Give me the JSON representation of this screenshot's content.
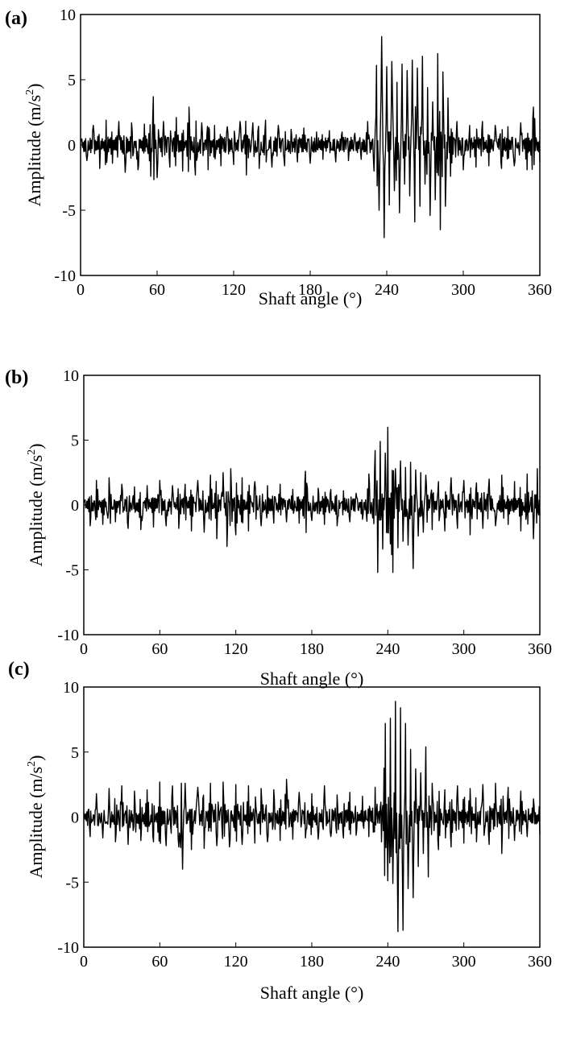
{
  "chart_data": [
    {
      "type": "line",
      "panel_label": "(a)",
      "xlabel": "Shaft angle (°)",
      "ylabel_main": "Amplitude (m/s",
      "ylabel_sup": "2",
      "ylabel_end": ")",
      "xlim": [
        0,
        360
      ],
      "ylim": [
        -10,
        10
      ],
      "xticks": [
        "0",
        "60",
        "120",
        "180",
        "240",
        "300",
        "360"
      ],
      "yticks": [
        "10",
        "5",
        "0",
        "-5",
        "-10"
      ],
      "grid": false,
      "series": [
        {
          "color": "#000000",
          "base_amplitude": 1.2,
          "seed": 11,
          "x": [
            0,
            5,
            10,
            15,
            20,
            25,
            30,
            35,
            40,
            45,
            50,
            55,
            57,
            60,
            65,
            70,
            75,
            80,
            85,
            90,
            95,
            100,
            105,
            110,
            115,
            120,
            125,
            130,
            135,
            140,
            145,
            150,
            155,
            160,
            165,
            170,
            175,
            180,
            185,
            190,
            195,
            200,
            205,
            210,
            215,
            220,
            225,
            230,
            232,
            234,
            236,
            238,
            240,
            242,
            244,
            246,
            248,
            250,
            252,
            254,
            256,
            258,
            260,
            262,
            264,
            266,
            268,
            270,
            272,
            274,
            276,
            278,
            280,
            282,
            284,
            286,
            288,
            290,
            295,
            300,
            305,
            310,
            315,
            320,
            325,
            330,
            335,
            340,
            345,
            350,
            355,
            360
          ],
          "y": [
            0.3,
            -1.2,
            1.5,
            -1.8,
            1.9,
            -1.4,
            1.8,
            -2.1,
            1.7,
            -1.9,
            1.6,
            -2.4,
            3.7,
            -2.5,
            1.8,
            -1.7,
            2.1,
            -2.0,
            2.9,
            -2.3,
            1.7,
            -1.9,
            1.5,
            -1.6,
            1.4,
            -1.5,
            1.8,
            -2.3,
            1.7,
            -1.8,
            1.9,
            -1.7,
            1.5,
            -1.6,
            1.2,
            -1.3,
            1.3,
            -1.4,
            1.0,
            -1.1,
            1.1,
            -1.3,
            1.0,
            -1.2,
            0.9,
            -1.1,
            1.8,
            -2.0,
            6.1,
            -5.0,
            8.3,
            -7.1,
            6.0,
            -4.6,
            6.4,
            -3.5,
            4.8,
            -5.2,
            6.2,
            -3.0,
            5.7,
            -3.9,
            6.5,
            -5.9,
            5.9,
            -4.7,
            6.8,
            -3.0,
            4.4,
            -5.4,
            3.3,
            -4.2,
            7.0,
            -6.5,
            5.6,
            -4.7,
            3.6,
            -2.4,
            1.8,
            -1.9,
            1.5,
            -1.7,
            1.8,
            -1.6,
            1.5,
            -1.8,
            1.4,
            -1.6,
            1.7,
            -1.9,
            2.9,
            -1.3
          ]
        }
      ]
    },
    {
      "type": "line",
      "panel_label": "(b)",
      "xlabel": "Shaft angle (°)",
      "ylabel_main": "Amplitude (m/s",
      "ylabel_sup": "2",
      "ylabel_end": ")",
      "xlim": [
        0,
        360
      ],
      "ylim": [
        -10,
        10
      ],
      "xticks": [
        "0",
        "60",
        "120",
        "180",
        "240",
        "300",
        "360"
      ],
      "yticks": [
        "10",
        "5",
        "0",
        "-5",
        "-10"
      ],
      "grid": false,
      "series": [
        {
          "color": "#000000",
          "base_amplitude": 1.0,
          "seed": 23,
          "x": [
            0,
            5,
            10,
            15,
            20,
            25,
            30,
            35,
            40,
            45,
            50,
            55,
            60,
            65,
            70,
            75,
            80,
            85,
            90,
            95,
            100,
            105,
            110,
            113,
            116,
            120,
            125,
            130,
            135,
            140,
            145,
            150,
            155,
            160,
            165,
            170,
            175,
            180,
            185,
            190,
            195,
            200,
            205,
            210,
            215,
            220,
            225,
            228,
            230,
            232,
            234,
            236,
            238,
            240,
            242,
            244,
            246,
            248,
            250,
            252,
            254,
            256,
            258,
            260,
            262,
            264,
            266,
            268,
            270,
            275,
            280,
            285,
            290,
            295,
            300,
            305,
            310,
            315,
            320,
            325,
            330,
            335,
            340,
            345,
            350,
            355,
            358,
            360
          ],
          "y": [
            0.2,
            -1.6,
            1.9,
            -1.5,
            2.1,
            -1.3,
            1.6,
            -1.8,
            1.4,
            -1.9,
            1.5,
            -1.7,
            1.9,
            -1.6,
            1.5,
            -1.8,
            1.6,
            -2.0,
            1.9,
            -2.1,
            2.3,
            -2.6,
            2.5,
            -3.2,
            2.8,
            -2.3,
            2.1,
            -2.0,
            1.8,
            -1.6,
            1.5,
            -1.4,
            1.6,
            -1.3,
            1.2,
            -1.4,
            2.6,
            -1.2,
            1.3,
            -1.5,
            1.2,
            -1.6,
            1.1,
            -1.3,
            0.9,
            -1.1,
            2.4,
            -1.0,
            4.2,
            -5.2,
            4.9,
            -3.4,
            4.0,
            6.0,
            -3.0,
            -5.2,
            2.8,
            -3.3,
            3.4,
            -2.8,
            2.9,
            -3.1,
            3.3,
            -4.9,
            2.7,
            -2.4,
            2.5,
            -2.1,
            2.3,
            -1.9,
            1.8,
            -2.0,
            2.1,
            -1.8,
            1.9,
            -2.3,
            1.7,
            -1.8,
            2.0,
            -1.6,
            2.3,
            -1.5,
            1.8,
            -2.0,
            2.4,
            -2.6,
            2.8,
            -0.8
          ]
        }
      ]
    },
    {
      "type": "line",
      "panel_label": "(c)",
      "xlabel": "Shaft angle (°)",
      "ylabel_main": "Amplitude (m/s",
      "ylabel_sup": "2",
      "ylabel_end": ")",
      "xlim": [
        0,
        360
      ],
      "ylim": [
        -10,
        10
      ],
      "xticks": [
        "0",
        "60",
        "120",
        "180",
        "240",
        "300",
        "360"
      ],
      "yticks": [
        "10",
        "5",
        "0",
        "-5",
        "-10"
      ],
      "grid": false,
      "series": [
        {
          "color": "#000000",
          "base_amplitude": 1.1,
          "seed": 37,
          "x": [
            0,
            5,
            10,
            15,
            20,
            25,
            30,
            35,
            40,
            45,
            50,
            55,
            60,
            65,
            70,
            75,
            78,
            80,
            85,
            90,
            95,
            100,
            105,
            110,
            115,
            120,
            125,
            130,
            135,
            140,
            145,
            150,
            155,
            160,
            165,
            170,
            175,
            180,
            185,
            190,
            195,
            200,
            205,
            210,
            215,
            220,
            225,
            230,
            235,
            238,
            240,
            242,
            244,
            246,
            248,
            250,
            252,
            254,
            256,
            258,
            260,
            262,
            264,
            266,
            268,
            270,
            272,
            275,
            280,
            285,
            290,
            295,
            300,
            305,
            310,
            315,
            320,
            325,
            330,
            335,
            340,
            345,
            350,
            355,
            360
          ],
          "y": [
            0.3,
            -1.5,
            1.8,
            -1.6,
            2.2,
            -1.9,
            2.4,
            -2.1,
            2.0,
            -1.8,
            2.1,
            -1.9,
            2.7,
            -2.2,
            2.4,
            -2.3,
            -4.0,
            2.6,
            -2.5,
            2.3,
            -2.4,
            2.6,
            -2.2,
            2.7,
            -2.3,
            2.5,
            -2.1,
            2.4,
            -2.0,
            2.2,
            -1.9,
            2.1,
            -1.8,
            2.9,
            -1.7,
            1.9,
            -1.6,
            1.8,
            -1.7,
            2.4,
            -1.5,
            1.7,
            -1.6,
            1.9,
            -1.4,
            1.6,
            -1.5,
            2.3,
            -1.9,
            7.2,
            -4.9,
            7.6,
            -5.1,
            8.9,
            -8.8,
            8.4,
            -8.7,
            7.2,
            -5.5,
            5.2,
            -6.2,
            3.7,
            -3.8,
            3.4,
            -2.8,
            5.4,
            -4.6,
            2.6,
            -2.5,
            2.1,
            -2.3,
            2.4,
            -2.0,
            2.2,
            -1.9,
            2.5,
            -2.1,
            2.6,
            -2.8,
            2.3,
            -1.8,
            2.0,
            -1.5,
            1.4,
            -1.3
          ]
        }
      ]
    }
  ]
}
